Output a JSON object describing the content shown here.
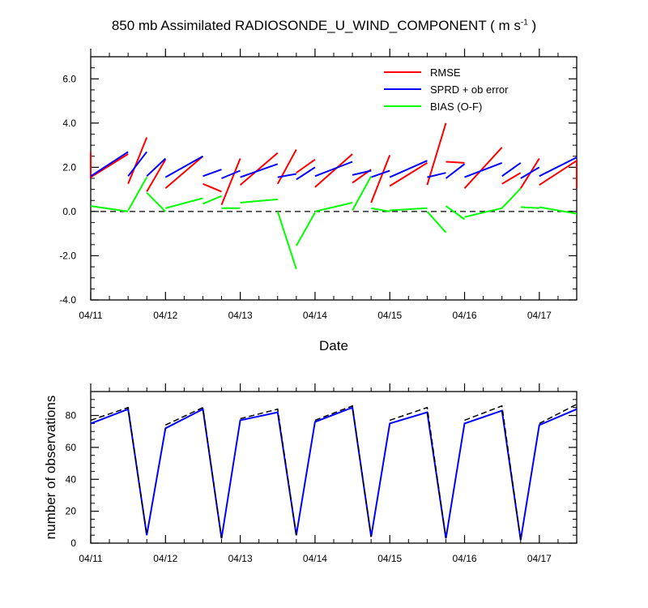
{
  "title": {
    "main": "850 mb Assimilated RADIOSONDE_U_WIND_COMPONENT ( m s",
    "sup": "-1",
    "end": " )"
  },
  "chart_data": [
    {
      "type": "line",
      "title": "850 mb Assimilated RADIOSONDE_U_WIND_COMPONENT ( m s-1 )",
      "xlabel": "Date",
      "ylabel": "",
      "x_tick_labels": [
        "04/11",
        "04/12",
        "04/13",
        "04/14",
        "04/15",
        "04/16",
        "04/17"
      ],
      "xlim": [
        0,
        6.5
      ],
      "ylim": [
        -4.0,
        7.0
      ],
      "y_ticks": [
        -4.0,
        -2.0,
        0.0,
        2.0,
        4.0,
        6.0
      ],
      "y_tick_labels": [
        "-4.0",
        "-2.0",
        "0.0",
        "2.0",
        "4.0",
        "6.0"
      ],
      "reference_line": {
        "y": 0,
        "style": "dashed"
      },
      "legend_position": "top-right",
      "series": [
        {
          "name": "RMSE",
          "color": "#ff0000",
          "segments": [
            [
              [
                0,
                2.7
              ],
              [
                0,
                1.55
              ],
              [
                0.5,
                2.6
              ]
            ],
            [
              [
                0.5,
                1.25
              ],
              [
                0.75,
                3.35
              ]
            ],
            [
              [
                0.75,
                0.9
              ],
              [
                1.0,
                2.35
              ]
            ],
            [
              [
                1.0,
                1.05
              ],
              [
                1.5,
                2.5
              ]
            ],
            [
              [
                1.5,
                1.25
              ],
              [
                1.75,
                0.9
              ]
            ],
            [
              [
                1.75,
                0.3
              ],
              [
                2.0,
                2.4
              ]
            ],
            [
              [
                2.0,
                1.2
              ],
              [
                2.5,
                2.65
              ]
            ],
            [
              [
                2.5,
                1.25
              ],
              [
                2.75,
                2.8
              ]
            ],
            [
              [
                2.75,
                1.75
              ],
              [
                3.0,
                2.35
              ]
            ],
            [
              [
                3.0,
                1.1
              ],
              [
                3.5,
                2.6
              ]
            ],
            [
              [
                3.5,
                1.3
              ],
              [
                3.75,
                1.9
              ]
            ],
            [
              [
                3.75,
                0.4
              ],
              [
                4.0,
                2.55
              ]
            ],
            [
              [
                4.0,
                1.15
              ],
              [
                4.5,
                2.2
              ]
            ],
            [
              [
                4.5,
                1.2
              ],
              [
                4.75,
                4.0
              ]
            ],
            [
              [
                4.75,
                2.25
              ],
              [
                5.0,
                2.2
              ]
            ],
            [
              [
                5.0,
                1.05
              ],
              [
                5.5,
                2.9
              ]
            ],
            [
              [
                5.5,
                1.25
              ],
              [
                5.75,
                1.75
              ]
            ],
            [
              [
                5.75,
                1.05
              ],
              [
                6.0,
                2.4
              ]
            ],
            [
              [
                6.0,
                1.2
              ],
              [
                6.5,
                2.3
              ],
              [
                6.5,
                1.05
              ]
            ]
          ]
        },
        {
          "name": "SPRD + ob error",
          "color": "#0000ff",
          "segments": [
            [
              [
                0,
                1.6
              ],
              [
                0.5,
                2.7
              ]
            ],
            [
              [
                0.5,
                1.6
              ],
              [
                0.75,
                2.7
              ]
            ],
            [
              [
                0.75,
                1.6
              ],
              [
                1.0,
                2.4
              ]
            ],
            [
              [
                1.0,
                1.55
              ],
              [
                1.5,
                2.5
              ]
            ],
            [
              [
                1.5,
                1.6
              ],
              [
                1.75,
                1.9
              ]
            ],
            [
              [
                1.75,
                1.5
              ],
              [
                2.0,
                1.85
              ]
            ],
            [
              [
                2.0,
                1.55
              ],
              [
                2.5,
                2.15
              ]
            ],
            [
              [
                2.5,
                1.55
              ],
              [
                2.75,
                1.7
              ]
            ],
            [
              [
                2.75,
                1.45
              ],
              [
                3.0,
                2.0
              ]
            ],
            [
              [
                3.0,
                1.6
              ],
              [
                3.5,
                2.25
              ]
            ],
            [
              [
                3.5,
                1.65
              ],
              [
                3.75,
                1.85
              ]
            ],
            [
              [
                3.75,
                1.55
              ],
              [
                4.0,
                1.85
              ]
            ],
            [
              [
                4.0,
                1.55
              ],
              [
                4.5,
                2.3
              ]
            ],
            [
              [
                4.5,
                1.55
              ],
              [
                4.75,
                1.75
              ]
            ],
            [
              [
                4.75,
                1.5
              ],
              [
                5.0,
                2.15
              ]
            ],
            [
              [
                5.0,
                1.55
              ],
              [
                5.5,
                2.2
              ]
            ],
            [
              [
                5.5,
                1.6
              ],
              [
                5.75,
                2.2
              ]
            ],
            [
              [
                5.75,
                1.5
              ],
              [
                6.0,
                2.0
              ]
            ],
            [
              [
                6.0,
                1.6
              ],
              [
                6.5,
                2.45
              ]
            ]
          ]
        },
        {
          "name": "BIAS (O-F)",
          "color": "#00ff00",
          "segments": [
            [
              [
                0,
                0.25
              ],
              [
                0.5,
                0.0
              ]
            ],
            [
              [
                0.5,
                0.05
              ],
              [
                0.75,
                1.55
              ]
            ],
            [
              [
                0.75,
                0.85
              ],
              [
                1.0,
                0.0
              ]
            ],
            [
              [
                1.0,
                0.15
              ],
              [
                1.5,
                0.6
              ]
            ],
            [
              [
                1.5,
                0.35
              ],
              [
                1.75,
                0.7
              ]
            ],
            [
              [
                1.75,
                0.15
              ],
              [
                2.0,
                0.15
              ]
            ],
            [
              [
                2.0,
                0.4
              ],
              [
                2.5,
                0.55
              ]
            ],
            [
              [
                2.5,
                0.0
              ],
              [
                2.75,
                -2.6
              ]
            ],
            [
              [
                2.75,
                -1.55
              ],
              [
                3.0,
                -0.05
              ]
            ],
            [
              [
                3.0,
                0.0
              ],
              [
                3.5,
                0.4
              ]
            ],
            [
              [
                3.5,
                0.05
              ],
              [
                3.75,
                1.6
              ]
            ],
            [
              [
                3.75,
                0.15
              ],
              [
                4.0,
                0.0
              ]
            ],
            [
              [
                4.0,
                0.05
              ],
              [
                4.5,
                0.15
              ]
            ],
            [
              [
                4.5,
                0.0
              ],
              [
                4.75,
                -0.95
              ]
            ],
            [
              [
                4.75,
                0.25
              ],
              [
                5.0,
                -0.35
              ]
            ],
            [
              [
                5.0,
                -0.25
              ],
              [
                5.5,
                0.15
              ]
            ],
            [
              [
                5.5,
                0.15
              ],
              [
                5.75,
                1.05
              ]
            ],
            [
              [
                5.75,
                0.2
              ],
              [
                6.0,
                0.15
              ]
            ],
            [
              [
                6.0,
                0.2
              ],
              [
                6.5,
                -0.1
              ]
            ]
          ]
        }
      ]
    },
    {
      "type": "line",
      "xlabel": "",
      "ylabel": "number of observations",
      "x_tick_labels": [
        "04/11",
        "04/12",
        "04/13",
        "04/14",
        "04/15",
        "04/16",
        "04/17"
      ],
      "xlim": [
        0,
        6.5
      ],
      "ylim": [
        0,
        95
      ],
      "y_ticks": [
        0,
        20,
        40,
        60,
        80
      ],
      "y_tick_labels": [
        "0",
        "20",
        "40",
        "60",
        "80"
      ],
      "series": [
        {
          "name": "",
          "color": "#0000ff",
          "style": "solid",
          "segments": [
            [
              [
                0,
                75
              ],
              [
                0.5,
                84
              ],
              [
                0.75,
                5
              ],
              [
                1.0,
                72
              ],
              [
                1.5,
                84
              ],
              [
                1.75,
                3
              ],
              [
                2.0,
                77
              ],
              [
                2.5,
                82
              ],
              [
                2.75,
                5
              ],
              [
                3.0,
                76
              ],
              [
                3.5,
                85
              ],
              [
                3.75,
                4
              ],
              [
                4.0,
                75
              ],
              [
                4.5,
                82
              ],
              [
                4.75,
                3
              ],
              [
                5.0,
                75
              ],
              [
                5.5,
                83
              ],
              [
                5.75,
                2
              ],
              [
                6.0,
                74
              ],
              [
                6.5,
                84
              ]
            ]
          ]
        },
        {
          "name": "",
          "color": "#000000",
          "style": "dashed",
          "segments": [
            [
              [
                0,
                77
              ],
              [
                0.5,
                85
              ],
              [
                0.75,
                5
              ]
            ],
            [
              [
                1.0,
                74
              ],
              [
                1.5,
                85
              ],
              [
                1.75,
                3
              ]
            ],
            [
              [
                2.0,
                78
              ],
              [
                2.5,
                84
              ],
              [
                2.75,
                5
              ]
            ],
            [
              [
                3.0,
                77
              ],
              [
                3.5,
                86
              ],
              [
                3.75,
                4
              ]
            ],
            [
              [
                4.0,
                77
              ],
              [
                4.5,
                85
              ],
              [
                4.75,
                3
              ]
            ],
            [
              [
                5.0,
                77
              ],
              [
                5.5,
                86
              ],
              [
                5.75,
                2
              ]
            ],
            [
              [
                6.0,
                75
              ],
              [
                6.5,
                87
              ]
            ]
          ]
        }
      ]
    }
  ]
}
